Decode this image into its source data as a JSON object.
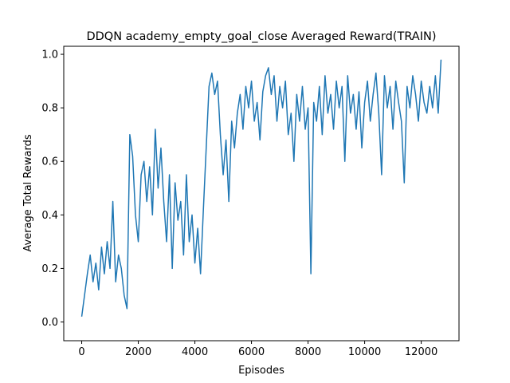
{
  "chart_data": {
    "type": "line",
    "title": "DDQN academy_empty_goal_close Averaged Reward(TRAIN)",
    "x_label": "Episodes",
    "y_label": "Average Total Rewards",
    "x": [
      0,
      100,
      200,
      300,
      400,
      500,
      600,
      700,
      800,
      900,
      1000,
      1100,
      1200,
      1300,
      1400,
      1500,
      1600,
      1700,
      1800,
      1900,
      2000,
      2100,
      2200,
      2300,
      2400,
      2500,
      2600,
      2700,
      2800,
      2900,
      3000,
      3100,
      3200,
      3300,
      3400,
      3500,
      3600,
      3700,
      3800,
      3900,
      4000,
      4100,
      4200,
      4300,
      4400,
      4500,
      4600,
      4700,
      4800,
      4900,
      5000,
      5100,
      5200,
      5300,
      5400,
      5500,
      5600,
      5700,
      5800,
      5900,
      6000,
      6100,
      6200,
      6300,
      6400,
      6500,
      6600,
      6700,
      6800,
      6900,
      7000,
      7100,
      7200,
      7300,
      7400,
      7500,
      7600,
      7700,
      7800,
      7900,
      8000,
      8100,
      8200,
      8300,
      8400,
      8500,
      8600,
      8700,
      8800,
      8900,
      9000,
      9100,
      9200,
      9300,
      9400,
      9500,
      9600,
      9700,
      9800,
      9900,
      10000,
      10100,
      10200,
      10300,
      10400,
      10500,
      10600,
      10700,
      10800,
      10900,
      11000,
      11100,
      11200,
      11300,
      11400,
      11500,
      11600,
      11700,
      11800,
      11900,
      12000,
      12100,
      12200,
      12300,
      12400,
      12500,
      12600,
      12700
    ],
    "series": [
      {
        "color": "#1f77b4",
        "values": [
          0.02,
          0.1,
          0.18,
          0.25,
          0.15,
          0.22,
          0.12,
          0.28,
          0.18,
          0.3,
          0.2,
          0.45,
          0.15,
          0.25,
          0.2,
          0.1,
          0.05,
          0.7,
          0.62,
          0.4,
          0.3,
          0.55,
          0.6,
          0.45,
          0.58,
          0.4,
          0.72,
          0.5,
          0.65,
          0.45,
          0.3,
          0.55,
          0.2,
          0.52,
          0.38,
          0.45,
          0.25,
          0.55,
          0.3,
          0.4,
          0.22,
          0.35,
          0.18,
          0.42,
          0.65,
          0.88,
          0.93,
          0.85,
          0.9,
          0.7,
          0.55,
          0.68,
          0.45,
          0.75,
          0.65,
          0.78,
          0.85,
          0.72,
          0.88,
          0.8,
          0.9,
          0.75,
          0.82,
          0.68,
          0.86,
          0.92,
          0.95,
          0.85,
          0.92,
          0.75,
          0.88,
          0.8,
          0.9,
          0.7,
          0.78,
          0.6,
          0.85,
          0.75,
          0.88,
          0.72,
          0.8,
          0.18,
          0.82,
          0.75,
          0.88,
          0.7,
          0.92,
          0.78,
          0.85,
          0.72,
          0.9,
          0.8,
          0.88,
          0.6,
          0.92,
          0.78,
          0.85,
          0.72,
          0.86,
          0.65,
          0.82,
          0.9,
          0.75,
          0.85,
          0.93,
          0.78,
          0.55,
          0.92,
          0.8,
          0.88,
          0.72,
          0.9,
          0.82,
          0.75,
          0.52,
          0.88,
          0.8,
          0.92,
          0.85,
          0.75,
          0.9,
          0.82,
          0.78,
          0.88,
          0.8,
          0.92,
          0.78,
          0.98
        ]
      }
    ],
    "xlim": [
      -635,
      13335
    ],
    "ylim": [
      -0.07,
      1.03
    ],
    "xticks": [
      0,
      2000,
      4000,
      6000,
      8000,
      10000,
      12000
    ],
    "yticks": [
      {
        "value": 0,
        "label": "0.0"
      },
      0.2,
      0.4,
      0.6,
      0.8,
      {
        "value": 1,
        "label": "1.0"
      }
    ],
    "grid": false
  }
}
